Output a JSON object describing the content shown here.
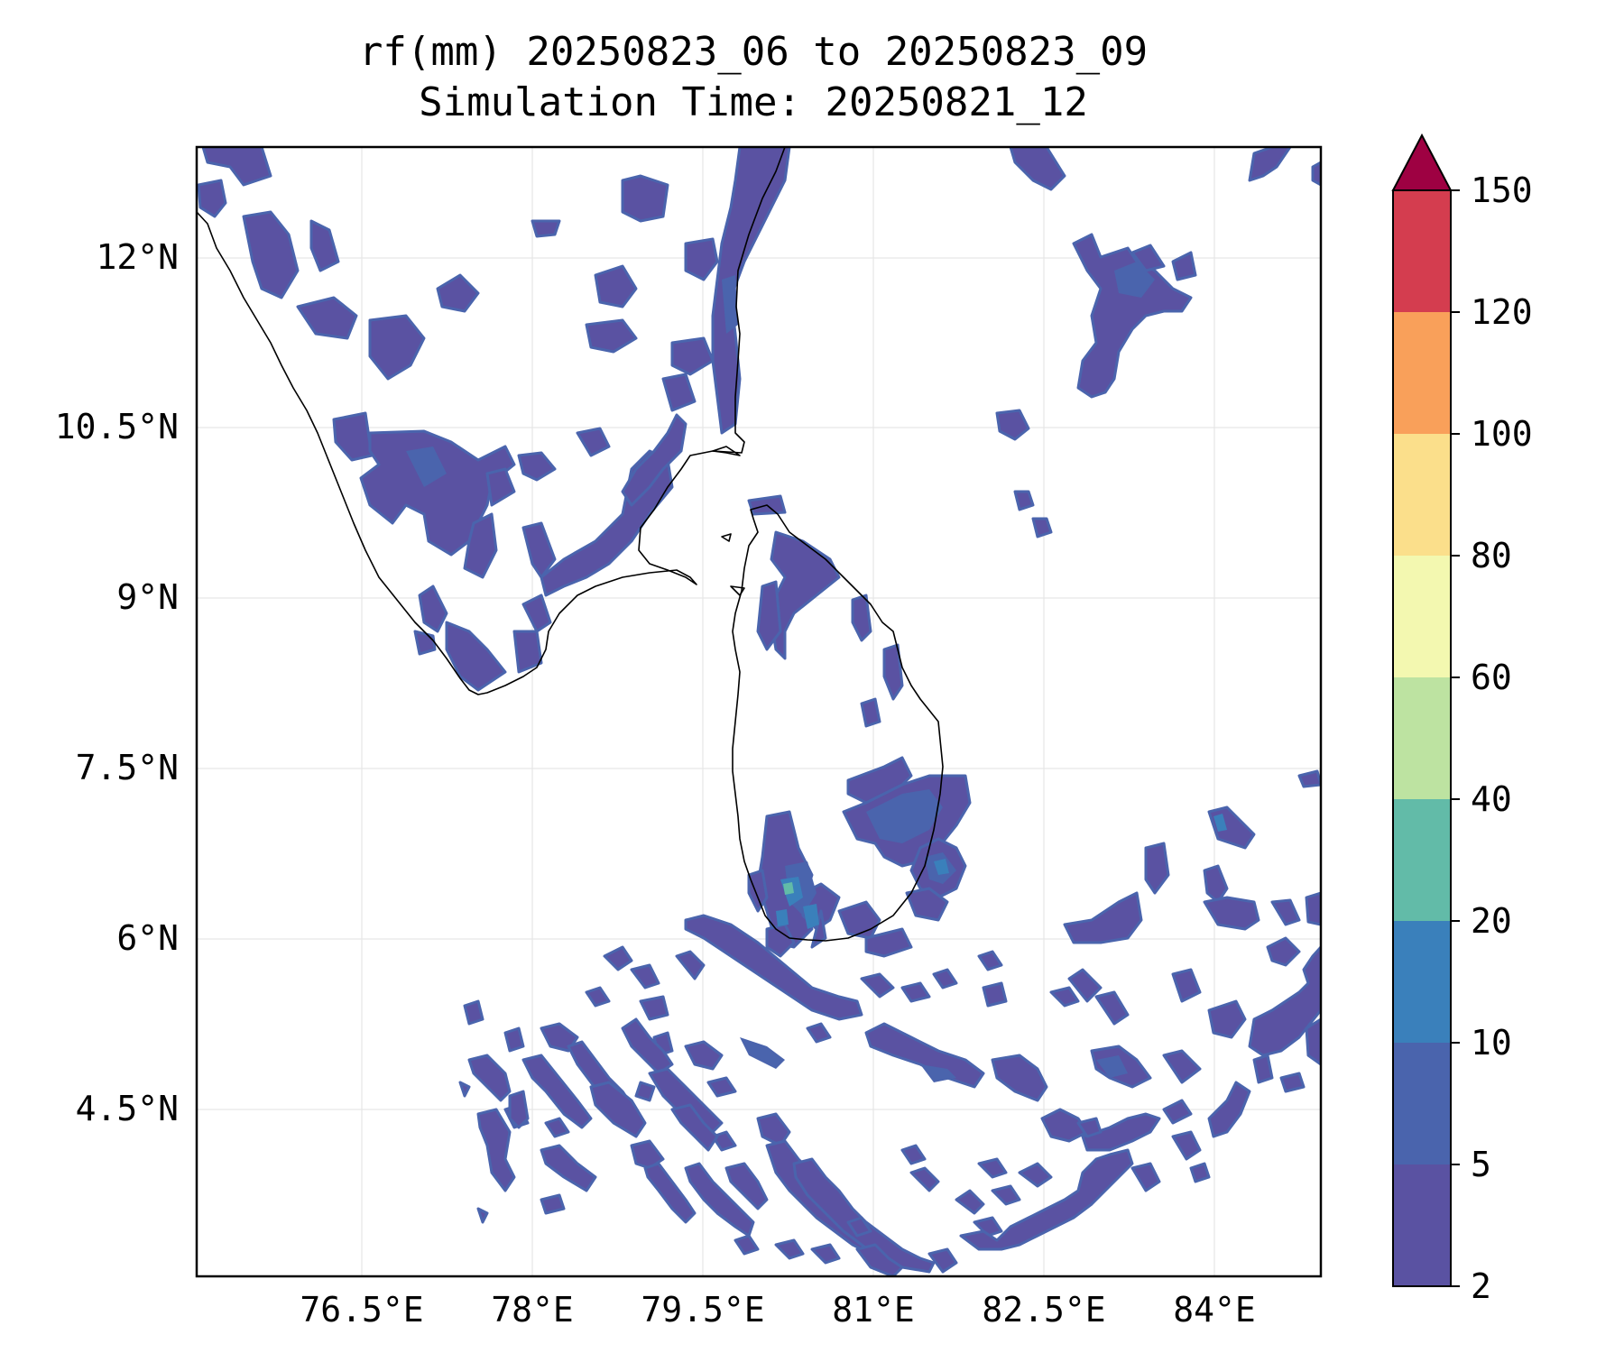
{
  "title": {
    "line1": "rf(mm) 20250823_06 to 20250823_09",
    "line2": "Simulation Time: 20250821_12"
  },
  "map": {
    "x_ticks": [
      "76.5°E",
      "78°E",
      "79.5°E",
      "81°E",
      "82.5°E",
      "84°E"
    ],
    "y_ticks": [
      "12°N",
      "10.5°N",
      "9°N",
      "7.5°N",
      "6°N",
      "4.5°N"
    ],
    "rain_fill_color": "#5a5aa6",
    "rain_edge_color": "#4b62ab",
    "coastline_color": "#000000"
  },
  "colorbar": {
    "levels": [
      "2",
      "5",
      "10",
      "20",
      "40",
      "60",
      "80",
      "100",
      "120",
      "150"
    ],
    "colors": [
      "#5a52a2",
      "#4a64ad",
      "#3a80bb",
      "#62bba8",
      "#bde3a1",
      "#f3f8b0",
      "#fbdf8b",
      "#f9a05a",
      "#d43d4f"
    ],
    "extend_color": "#9e0142"
  }
}
